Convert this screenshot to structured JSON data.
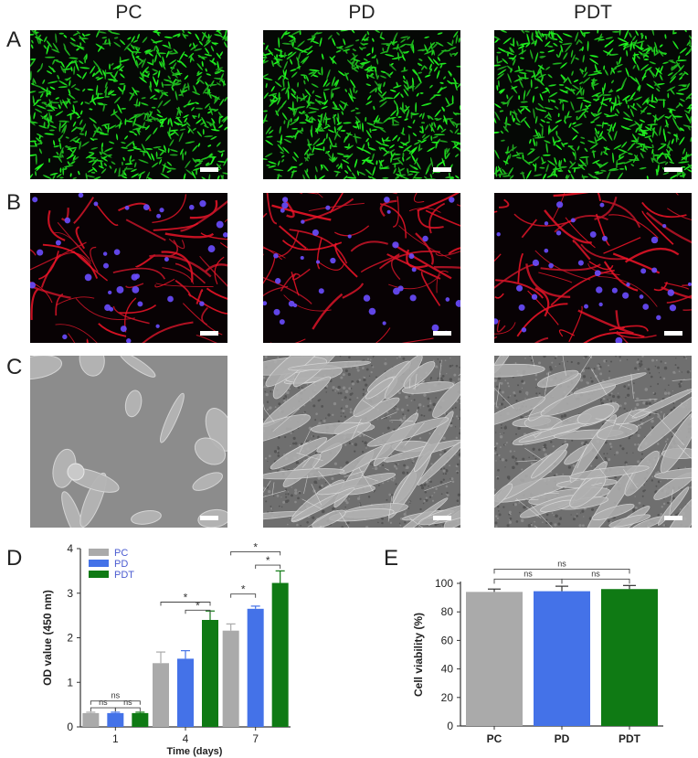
{
  "columns": [
    "PC",
    "PD",
    "PDT"
  ],
  "row_labels": [
    "A",
    "B",
    "C"
  ],
  "panel_labels": [
    "D",
    "E"
  ],
  "chart_data": [
    {
      "type": "bar",
      "panel": "D",
      "categories": [
        "1",
        "4",
        "7"
      ],
      "xlabel": "Time (days)",
      "ylabel": "OD value (450 nm)",
      "ylim": [
        0,
        4
      ],
      "yticks": [
        "0",
        "1",
        "2",
        "3",
        "4"
      ],
      "legend": "top-left",
      "series": [
        {
          "name": "PC",
          "color": "#aaaaaa",
          "values": [
            0.31,
            1.43,
            2.16
          ],
          "errors": [
            0.02,
            0.25,
            0.15
          ]
        },
        {
          "name": "PD",
          "color": "#4472e8",
          "values": [
            0.31,
            1.53,
            2.65
          ],
          "errors": [
            0.02,
            0.18,
            0.06
          ]
        },
        {
          "name": "PDT",
          "color": "#0f7a14",
          "values": [
            0.31,
            2.4,
            3.23
          ],
          "errors": [
            0.02,
            0.2,
            0.27
          ]
        }
      ],
      "annotations": [
        {
          "text": "ns",
          "group": 0,
          "from": 0,
          "to": 2,
          "level": 0.58
        },
        {
          "text": "ns",
          "group": 0,
          "from": 0,
          "to": 1,
          "level": 0.43
        },
        {
          "text": "ns",
          "group": 0,
          "from": 1,
          "to": 2,
          "level": 0.43
        },
        {
          "text": "*",
          "group": 1,
          "from": 0,
          "to": 2,
          "level": 2.8
        },
        {
          "text": "*",
          "group": 1,
          "from": 1,
          "to": 2,
          "level": 2.62
        },
        {
          "text": "*",
          "group": 2,
          "from": 0,
          "to": 1,
          "level": 2.98
        },
        {
          "text": "*",
          "group": 2,
          "from": 1,
          "to": 2,
          "level": 3.63
        },
        {
          "text": "*",
          "group": 2,
          "from": 0,
          "to": 2,
          "level": 3.93
        }
      ]
    },
    {
      "type": "bar",
      "panel": "E",
      "categories": [
        "PC",
        "PD",
        "PDT"
      ],
      "xlabel": "",
      "ylabel": "Cell viability (%)",
      "ylim": [
        0,
        100
      ],
      "yticks": [
        "0",
        "20",
        "40",
        "60",
        "80",
        "100"
      ],
      "colors": [
        "#aaaaaa",
        "#4472e8",
        "#0f7a14"
      ],
      "values": [
        94,
        94.5,
        96
      ],
      "errors": [
        2,
        3.5,
        2.5
      ],
      "annotations": [
        {
          "text": "ns",
          "from": 0,
          "to": 2,
          "level": 110
        },
        {
          "text": "ns",
          "from": 0,
          "to": 1,
          "level": 103
        },
        {
          "text": "ns",
          "from": 1,
          "to": 2,
          "level": 103
        }
      ]
    }
  ]
}
